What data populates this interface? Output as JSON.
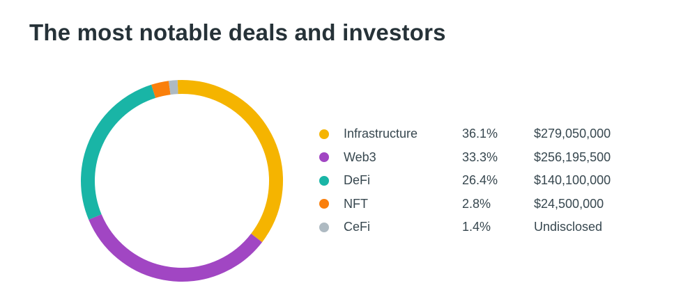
{
  "title": "The most notable deals and investors",
  "chart_data": {
    "type": "pie",
    "title": "The most notable deals and investors",
    "donut": true,
    "start_offset_deg": -2.5,
    "series": [
      {
        "name": "Infrastructure",
        "percent": 36.1,
        "percent_label": "36.1%",
        "value_label": "$279,050,000",
        "value": 279050000,
        "color": "#F5B400"
      },
      {
        "name": "Web3",
        "percent": 33.3,
        "percent_label": "33.3%",
        "value_label": "$256,195,500",
        "value": 256195500,
        "color": "#A146C3"
      },
      {
        "name": "DeFi",
        "percent": 26.4,
        "percent_label": "26.4%",
        "value_label": "$140,100,000",
        "value": 140100000,
        "color": "#19B5A6"
      },
      {
        "name": "NFT",
        "percent": 2.8,
        "percent_label": "2.8%",
        "value_label": "$24,500,000",
        "value": 24500000,
        "color": "#FA7F0B"
      },
      {
        "name": "CeFi",
        "percent": 1.4,
        "percent_label": "1.4%",
        "value_label": "Undisclosed",
        "value": null,
        "color": "#AEBAC2"
      }
    ],
    "legend_position": "right"
  }
}
